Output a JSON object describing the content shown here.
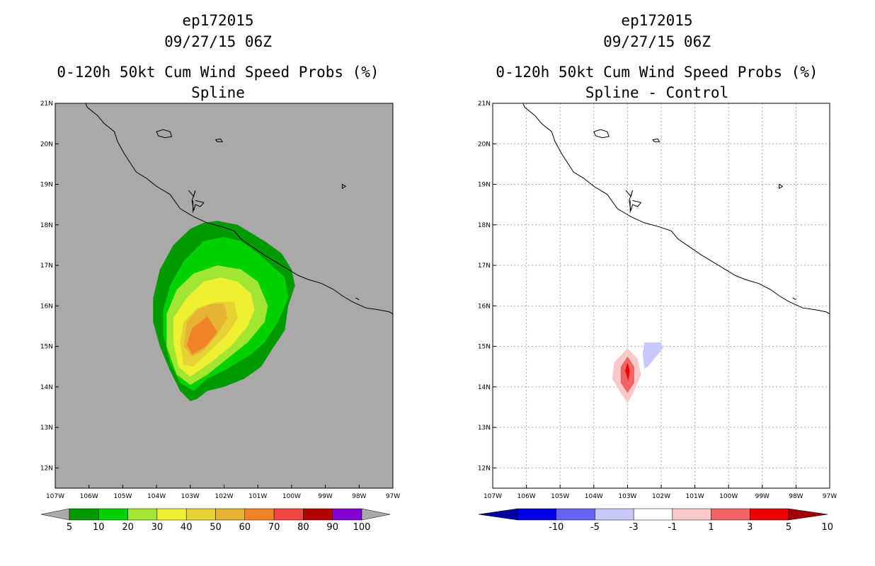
{
  "chart_data": [
    {
      "type": "contour-map",
      "id": "left",
      "title_lines": [
        "ep172015",
        "09/27/15 06Z",
        "0-120h 50kt Cum Wind Speed Probs (%)",
        "Spline"
      ],
      "x_range": [
        -107,
        -97
      ],
      "y_range": [
        11.5,
        21
      ],
      "x_tick_labels": [
        "107W",
        "106W",
        "105W",
        "104W",
        "103W",
        "102W",
        "101W",
        "100W",
        "99W",
        "98W",
        "97W"
      ],
      "y_tick_labels": [
        "12N",
        "13N",
        "14N",
        "15N",
        "16N",
        "17N",
        "18N",
        "19N",
        "20N",
        "21N"
      ],
      "grid": false,
      "background_color": "#a9a9a9",
      "colorbar": {
        "labels": [
          "5",
          "10",
          "20",
          "30",
          "40",
          "50",
          "60",
          "70",
          "80",
          "90",
          "100"
        ],
        "colors": [
          "#009a00",
          "#00d200",
          "#a0e632",
          "#f0f032",
          "#e6d232",
          "#e6b432",
          "#f08228",
          "#f04646",
          "#b40000",
          "#8200d2",
          "#8200d2"
        ]
      },
      "contours": [
        {
          "level": 5,
          "color": "#009a00",
          "points": [
            [
              -102.2,
              18.1
            ],
            [
              -101.6,
              18.0
            ],
            [
              -100.8,
              17.6
            ],
            [
              -100.3,
              17.3
            ],
            [
              -100.0,
              16.9
            ],
            [
              -99.9,
              16.5
            ],
            [
              -100.1,
              16.0
            ],
            [
              -100.2,
              15.4
            ],
            [
              -100.6,
              14.9
            ],
            [
              -100.9,
              14.5
            ],
            [
              -101.4,
              14.2
            ],
            [
              -102.0,
              14.0
            ],
            [
              -102.5,
              13.9
            ],
            [
              -102.8,
              13.7
            ],
            [
              -103.0,
              13.65
            ],
            [
              -103.3,
              13.9
            ],
            [
              -103.6,
              14.4
            ],
            [
              -103.9,
              15.0
            ],
            [
              -104.1,
              15.6
            ],
            [
              -104.1,
              16.2
            ],
            [
              -103.9,
              16.9
            ],
            [
              -103.5,
              17.5
            ],
            [
              -103.0,
              17.9
            ],
            [
              -102.6,
              18.05
            ]
          ]
        },
        {
          "level": 10,
          "color": "#00d200",
          "points": [
            [
              -102.0,
              17.7
            ],
            [
              -101.5,
              17.6
            ],
            [
              -101.0,
              17.3
            ],
            [
              -100.6,
              17.0
            ],
            [
              -100.2,
              16.7
            ],
            [
              -100.1,
              16.2
            ],
            [
              -100.4,
              15.6
            ],
            [
              -100.8,
              15.1
            ],
            [
              -101.2,
              14.8
            ],
            [
              -101.6,
              14.6
            ],
            [
              -102.0,
              14.4
            ],
            [
              -102.5,
              14.2
            ],
            [
              -102.9,
              13.9
            ],
            [
              -103.3,
              14.1
            ],
            [
              -103.6,
              14.6
            ],
            [
              -103.8,
              15.3
            ],
            [
              -103.8,
              15.9
            ],
            [
              -103.6,
              16.5
            ],
            [
              -103.2,
              17.1
            ],
            [
              -102.6,
              17.6
            ]
          ]
        },
        {
          "level": 20,
          "color": "#a0e632",
          "points": [
            [
              -102.2,
              17.0
            ],
            [
              -101.5,
              16.9
            ],
            [
              -101.0,
              16.6
            ],
            [
              -100.7,
              16.0
            ],
            [
              -100.8,
              15.6
            ],
            [
              -101.3,
              15.1
            ],
            [
              -101.9,
              14.7
            ],
            [
              -102.5,
              14.3
            ],
            [
              -103.0,
              14.05
            ],
            [
              -103.4,
              14.3
            ],
            [
              -103.7,
              15.0
            ],
            [
              -103.7,
              15.8
            ],
            [
              -103.4,
              16.4
            ],
            [
              -102.9,
              16.8
            ]
          ]
        },
        {
          "level": 30,
          "color": "#f0f032",
          "points": [
            [
              -102.1,
              16.7
            ],
            [
              -101.6,
              16.6
            ],
            [
              -101.2,
              16.3
            ],
            [
              -101.1,
              15.9
            ],
            [
              -101.3,
              15.5
            ],
            [
              -101.8,
              15.0
            ],
            [
              -102.4,
              14.6
            ],
            [
              -103.0,
              14.25
            ],
            [
              -103.35,
              14.5
            ],
            [
              -103.5,
              15.1
            ],
            [
              -103.5,
              15.7
            ],
            [
              -103.1,
              16.2
            ],
            [
              -102.6,
              16.6
            ]
          ]
        },
        {
          "level": 40,
          "color": "#e6d232",
          "points": [
            [
              -102.2,
              16.1
            ],
            [
              -101.7,
              16.1
            ],
            [
              -101.6,
              15.7
            ],
            [
              -101.9,
              15.3
            ],
            [
              -102.4,
              14.9
            ],
            [
              -102.9,
              14.5
            ],
            [
              -103.2,
              14.55
            ],
            [
              -103.3,
              15.1
            ],
            [
              -103.2,
              15.6
            ],
            [
              -102.8,
              15.95
            ]
          ]
        },
        {
          "level": 50,
          "color": "#e6b432",
          "points": [
            [
              -102.4,
              16.05
            ],
            [
              -102.0,
              16.05
            ],
            [
              -101.9,
              15.7
            ],
            [
              -102.2,
              15.3
            ],
            [
              -102.6,
              14.9
            ],
            [
              -102.95,
              14.75
            ],
            [
              -103.2,
              15.0
            ],
            [
              -103.1,
              15.6
            ],
            [
              -102.8,
              15.9
            ]
          ]
        },
        {
          "level": 60,
          "color": "#f08228",
          "points": [
            [
              -102.5,
              15.75
            ],
            [
              -102.2,
              15.35
            ],
            [
              -102.55,
              15.0
            ],
            [
              -102.95,
              14.8
            ],
            [
              -103.1,
              15.05
            ],
            [
              -102.95,
              15.45
            ],
            [
              -102.7,
              15.6
            ]
          ]
        }
      ]
    },
    {
      "type": "contour-map",
      "id": "right",
      "title_lines": [
        "ep172015",
        "09/27/15 06Z",
        "0-120h 50kt Cum Wind Speed Probs (%)",
        "Spline - Control"
      ],
      "x_range": [
        -107,
        -97
      ],
      "y_range": [
        11.5,
        21
      ],
      "x_tick_labels": [
        "107W",
        "106W",
        "105W",
        "104W",
        "103W",
        "102W",
        "101W",
        "100W",
        "99W",
        "98W",
        "97W"
      ],
      "y_tick_labels": [
        "12N",
        "13N",
        "14N",
        "15N",
        "16N",
        "17N",
        "18N",
        "19N",
        "20N",
        "21N"
      ],
      "grid": true,
      "background_color": "#ffffff",
      "colorbar": {
        "labels": [
          "-10",
          "-5",
          "-3",
          "-1",
          "1",
          "3",
          "5",
          "10"
        ],
        "colors": [
          "#0000a0",
          "#0000e6",
          "#6464f0",
          "#c8c8fa",
          "#ffffff",
          "#fac8c8",
          "#f06464",
          "#f00000",
          "#a00000"
        ]
      },
      "contours": [
        {
          "level": -1,
          "color": "#c8c8fa",
          "points": [
            [
              -102.5,
              15.1
            ],
            [
              -102.0,
              15.1
            ],
            [
              -101.95,
              14.95
            ],
            [
              -102.2,
              14.7
            ],
            [
              -102.4,
              14.5
            ],
            [
              -102.5,
              14.45
            ],
            [
              -102.55,
              14.8
            ]
          ]
        },
        {
          "level": 1,
          "color": "#fac8c8",
          "points": [
            [
              -103.0,
              14.95
            ],
            [
              -102.7,
              14.7
            ],
            [
              -102.6,
              14.3
            ],
            [
              -102.8,
              13.9
            ],
            [
              -103.0,
              13.6
            ],
            [
              -103.2,
              13.85
            ],
            [
              -103.45,
              14.2
            ],
            [
              -103.4,
              14.6
            ]
          ]
        },
        {
          "level": 3,
          "color": "#f06464",
          "points": [
            [
              -103.0,
              14.75
            ],
            [
              -102.8,
              14.5
            ],
            [
              -102.8,
              14.1
            ],
            [
              -103.0,
              13.85
            ],
            [
              -103.2,
              14.1
            ],
            [
              -103.2,
              14.5
            ]
          ]
        },
        {
          "level": 5,
          "color": "#f00000",
          "points": [
            [
              -103.0,
              14.6
            ],
            [
              -102.93,
              14.4
            ],
            [
              -102.98,
              14.15
            ],
            [
              -103.07,
              14.4
            ]
          ]
        }
      ]
    }
  ]
}
